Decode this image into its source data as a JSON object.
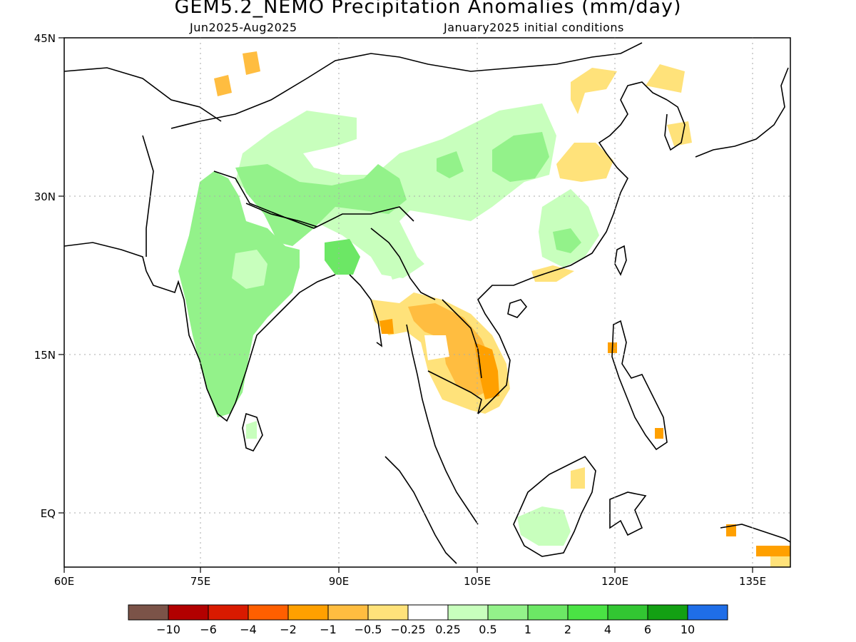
{
  "header": {
    "title": "GEM5.2_NEMO Precipitation Anomalies (mm/day)",
    "period": "Jun2025-Aug2025",
    "init": "January2025 initial conditions"
  },
  "axes": {
    "lon_labels": [
      "60E",
      "75E",
      "90E",
      "105E",
      "120E",
      "135E"
    ],
    "lat_labels": [
      "45N",
      "30N",
      "15N",
      "EQ"
    ],
    "lon_range": [
      60,
      139
    ],
    "lat_range": [
      -5,
      45
    ]
  },
  "colorbar": {
    "colors": [
      "#7b5348",
      "#b20000",
      "#d91a00",
      "#ff5f00",
      "#ffa000",
      "#ffbd40",
      "#ffe27a",
      "#ffffff",
      "#c8ffbd",
      "#93f28a",
      "#6ce765",
      "#4ae344",
      "#32c632",
      "#13a013",
      "#1f6ee8"
    ],
    "labels": [
      "-10",
      "-6",
      "-4",
      "-2",
      "-1",
      "-0.5",
      "-0.25",
      "0.25",
      "0.5",
      "1",
      "2",
      "4",
      "6",
      "10"
    ]
  },
  "anomaly_patches": [
    {
      "level": "0.5",
      "color": "#c8ffbd",
      "region": "Tibet–northern China band"
    },
    {
      "level": "1",
      "color": "#93f28a",
      "region": "Indian subcontinent"
    },
    {
      "level": "1",
      "color": "#93f28a",
      "region": "Tibet / Himalaya"
    },
    {
      "level": "1",
      "color": "#93f28a",
      "region": "Central China"
    },
    {
      "level": "0.5",
      "color": "#c8ffbd",
      "region": "Southeast China"
    },
    {
      "level": "0.5",
      "color": "#c8ffbd",
      "region": "Borneo"
    },
    {
      "level": "-0.5",
      "color": "#ffbd40",
      "region": "Indochina"
    },
    {
      "level": "-1",
      "color": "#ffa000",
      "region": "Southern Vietnam"
    },
    {
      "level": "-0.25",
      "color": "#ffe27a",
      "region": "Eastern China"
    },
    {
      "level": "-0.25",
      "color": "#ffe27a",
      "region": "Korea / Japan"
    },
    {
      "level": "-1",
      "color": "#ffa000",
      "region": "New Guinea"
    }
  ]
}
